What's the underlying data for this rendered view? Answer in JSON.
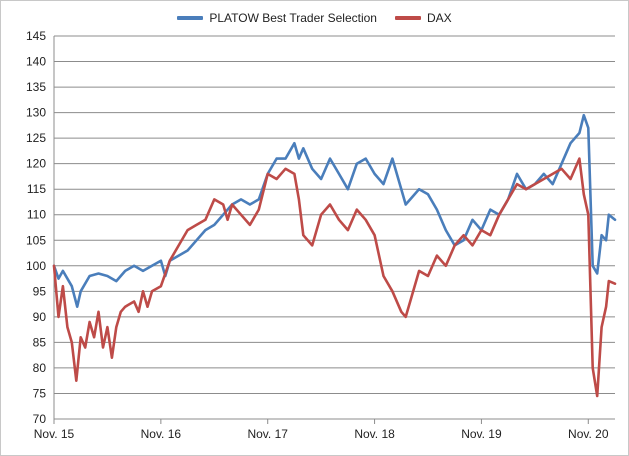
{
  "chart_data": {
    "type": "line",
    "title": "",
    "xlabel": "",
    "ylabel": "",
    "ylim": [
      70,
      145
    ],
    "y_ticks": [
      70,
      75,
      80,
      85,
      90,
      95,
      100,
      105,
      110,
      115,
      120,
      125,
      130,
      135,
      140,
      145
    ],
    "x_tick_labels": [
      "Nov. 15",
      "Nov. 16",
      "Nov. 17",
      "Nov. 18",
      "Nov. 19",
      "Nov. 20"
    ],
    "x_range": [
      0,
      63
    ],
    "x_unit": "months since Nov. 15",
    "grid": "horizontal",
    "legend_position": "top",
    "series": [
      {
        "name": "PLATOW Best Trader Selection",
        "color": "#4a7ebb",
        "points": [
          [
            0,
            100
          ],
          [
            0.5,
            97.5
          ],
          [
            1,
            99
          ],
          [
            2,
            96
          ],
          [
            2.6,
            92
          ],
          [
            3,
            95
          ],
          [
            4,
            98
          ],
          [
            5,
            98.5
          ],
          [
            6,
            98
          ],
          [
            7,
            97
          ],
          [
            8,
            99
          ],
          [
            9,
            100
          ],
          [
            10,
            99
          ],
          [
            11,
            100
          ],
          [
            12,
            101
          ],
          [
            12.5,
            98
          ],
          [
            13,
            101
          ],
          [
            14,
            102
          ],
          [
            15,
            103
          ],
          [
            16,
            105
          ],
          [
            17,
            107
          ],
          [
            18,
            108
          ],
          [
            19,
            110
          ],
          [
            20,
            112
          ],
          [
            21,
            113
          ],
          [
            22,
            112
          ],
          [
            23,
            113
          ],
          [
            24,
            118
          ],
          [
            25,
            121
          ],
          [
            26,
            121
          ],
          [
            27,
            124
          ],
          [
            27.5,
            121
          ],
          [
            28,
            123
          ],
          [
            29,
            119
          ],
          [
            30,
            117
          ],
          [
            31,
            121
          ],
          [
            32,
            118
          ],
          [
            33,
            115
          ],
          [
            34,
            120
          ],
          [
            35,
            121
          ],
          [
            36,
            118
          ],
          [
            37,
            116
          ],
          [
            38,
            121
          ],
          [
            39,
            115
          ],
          [
            39.5,
            112
          ],
          [
            40,
            113
          ],
          [
            41,
            115
          ],
          [
            42,
            114
          ],
          [
            43,
            111
          ],
          [
            44,
            107
          ],
          [
            45,
            104
          ],
          [
            46,
            105
          ],
          [
            47,
            109
          ],
          [
            48,
            107
          ],
          [
            49,
            111
          ],
          [
            50,
            110
          ],
          [
            51,
            113
          ],
          [
            52,
            118
          ],
          [
            53,
            115
          ],
          [
            54,
            116
          ],
          [
            55,
            118
          ],
          [
            56,
            116
          ],
          [
            57,
            120
          ],
          [
            58,
            124
          ],
          [
            59,
            126
          ],
          [
            59.5,
            129.5
          ],
          [
            60,
            127
          ],
          [
            60.5,
            100
          ],
          [
            61,
            98.5
          ],
          [
            61.5,
            106
          ],
          [
            62,
            105
          ],
          [
            62.3,
            110
          ],
          [
            63,
            109
          ]
        ]
      },
      {
        "name": "DAX",
        "color": "#be4b48",
        "points": [
          [
            0,
            100
          ],
          [
            0.5,
            90
          ],
          [
            1,
            96
          ],
          [
            1.5,
            88
          ],
          [
            2,
            85
          ],
          [
            2.5,
            77.5
          ],
          [
            3,
            86
          ],
          [
            3.5,
            84
          ],
          [
            4,
            89
          ],
          [
            4.5,
            86
          ],
          [
            5,
            91
          ],
          [
            5.5,
            84
          ],
          [
            6,
            88
          ],
          [
            6.5,
            82
          ],
          [
            7,
            88
          ],
          [
            7.5,
            91
          ],
          [
            8,
            92
          ],
          [
            9,
            93
          ],
          [
            9.5,
            91
          ],
          [
            10,
            95
          ],
          [
            10.5,
            92
          ],
          [
            11,
            95
          ],
          [
            12,
            96
          ],
          [
            13,
            101
          ],
          [
            14,
            104
          ],
          [
            15,
            107
          ],
          [
            16,
            108
          ],
          [
            17,
            109
          ],
          [
            18,
            113
          ],
          [
            19,
            112
          ],
          [
            19.5,
            109
          ],
          [
            20,
            112
          ],
          [
            21,
            110
          ],
          [
            22,
            108
          ],
          [
            23,
            111
          ],
          [
            24,
            118
          ],
          [
            25,
            117
          ],
          [
            26,
            119
          ],
          [
            27,
            118
          ],
          [
            27.5,
            113
          ],
          [
            28,
            106
          ],
          [
            29,
            104
          ],
          [
            30,
            110
          ],
          [
            31,
            112
          ],
          [
            32,
            109
          ],
          [
            33,
            107
          ],
          [
            34,
            111
          ],
          [
            35,
            109
          ],
          [
            36,
            106
          ],
          [
            37,
            98
          ],
          [
            38,
            95
          ],
          [
            39,
            91
          ],
          [
            39.5,
            90
          ],
          [
            40,
            93
          ],
          [
            41,
            99
          ],
          [
            42,
            98
          ],
          [
            43,
            102
          ],
          [
            44,
            100
          ],
          [
            45,
            104
          ],
          [
            46,
            106
          ],
          [
            47,
            104
          ],
          [
            48,
            107
          ],
          [
            49,
            106
          ],
          [
            50,
            110
          ],
          [
            51,
            113
          ],
          [
            52,
            116
          ],
          [
            53,
            115
          ],
          [
            54,
            116
          ],
          [
            55,
            117
          ],
          [
            56,
            118
          ],
          [
            57,
            119
          ],
          [
            58,
            117
          ],
          [
            59,
            121
          ],
          [
            59.5,
            114
          ],
          [
            60,
            110
          ],
          [
            60.5,
            80
          ],
          [
            61,
            74.5
          ],
          [
            61.5,
            88
          ],
          [
            62,
            92
          ],
          [
            62.3,
            97
          ],
          [
            63,
            96.5
          ]
        ]
      }
    ]
  }
}
